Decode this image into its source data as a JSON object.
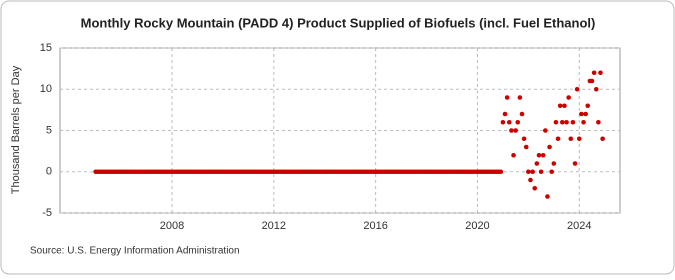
{
  "chart_data": {
    "type": "scatter",
    "title": "Monthly Rocky Mountain (PADD 4) Product Supplied of Biofuels (incl. Fuel Ethanol)",
    "y_label": "Thousand Barrels per Day",
    "source": "Source: U.S. Energy Information Administration",
    "color": "#cc0000",
    "xlim": [
      2003.6,
      2025.6
    ],
    "xticks": [
      2008,
      2012,
      2016,
      2020,
      2024
    ],
    "ylim": [
      -5,
      15
    ],
    "yticks": [
      -5,
      0,
      5,
      10,
      15
    ],
    "grid": true,
    "x": [
      2005,
      2005.083,
      2005.167,
      2005.25,
      2005.333,
      2005.417,
      2005.5,
      2005.583,
      2005.667,
      2005.75,
      2005.833,
      2005.917,
      2006,
      2006.083,
      2006.167,
      2006.25,
      2006.333,
      2006.417,
      2006.5,
      2006.583,
      2006.667,
      2006.75,
      2006.833,
      2006.917,
      2007,
      2007.083,
      2007.167,
      2007.25,
      2007.333,
      2007.417,
      2007.5,
      2007.583,
      2007.667,
      2007.75,
      2007.833,
      2007.917,
      2008,
      2008.083,
      2008.167,
      2008.25,
      2008.333,
      2008.417,
      2008.5,
      2008.583,
      2008.667,
      2008.75,
      2008.833,
      2008.917,
      2009,
      2009.083,
      2009.167,
      2009.25,
      2009.333,
      2009.417,
      2009.5,
      2009.583,
      2009.667,
      2009.75,
      2009.833,
      2009.917,
      2010,
      2010.083,
      2010.167,
      2010.25,
      2010.333,
      2010.417,
      2010.5,
      2010.583,
      2010.667,
      2010.75,
      2010.833,
      2010.917,
      2011,
      2011.083,
      2011.167,
      2011.25,
      2011.333,
      2011.417,
      2011.5,
      2011.583,
      2011.667,
      2011.75,
      2011.833,
      2011.917,
      2012,
      2012.083,
      2012.167,
      2012.25,
      2012.333,
      2012.417,
      2012.5,
      2012.583,
      2012.667,
      2012.75,
      2012.833,
      2012.917,
      2013,
      2013.083,
      2013.167,
      2013.25,
      2013.333,
      2013.417,
      2013.5,
      2013.583,
      2013.667,
      2013.75,
      2013.833,
      2013.917,
      2014,
      2014.083,
      2014.167,
      2014.25,
      2014.333,
      2014.417,
      2014.5,
      2014.583,
      2014.667,
      2014.75,
      2014.833,
      2014.917,
      2015,
      2015.083,
      2015.167,
      2015.25,
      2015.333,
      2015.417,
      2015.5,
      2015.583,
      2015.667,
      2015.75,
      2015.833,
      2015.917,
      2016,
      2016.083,
      2016.167,
      2016.25,
      2016.333,
      2016.417,
      2016.5,
      2016.583,
      2016.667,
      2016.75,
      2016.833,
      2016.917,
      2017,
      2017.083,
      2017.167,
      2017.25,
      2017.333,
      2017.417,
      2017.5,
      2017.583,
      2017.667,
      2017.75,
      2017.833,
      2017.917,
      2018,
      2018.083,
      2018.167,
      2018.25,
      2018.333,
      2018.417,
      2018.5,
      2018.583,
      2018.667,
      2018.75,
      2018.833,
      2018.917,
      2019,
      2019.083,
      2019.167,
      2019.25,
      2019.333,
      2019.417,
      2019.5,
      2019.583,
      2019.667,
      2019.75,
      2019.833,
      2019.917,
      2020,
      2020.083,
      2020.167,
      2020.25,
      2020.333,
      2020.417,
      2020.5,
      2020.583,
      2020.667,
      2020.75,
      2020.833,
      2020.917,
      2021,
      2021.083,
      2021.167,
      2021.25,
      2021.333,
      2021.417,
      2021.5,
      2021.583,
      2021.667,
      2021.75,
      2021.833,
      2021.917,
      2022,
      2022.083,
      2022.167,
      2022.25,
      2022.333,
      2022.417,
      2022.5,
      2022.583,
      2022.667,
      2022.75,
      2022.833,
      2022.917,
      2023,
      2023.083,
      2023.167,
      2023.25,
      2023.333,
      2023.417,
      2023.5,
      2023.583,
      2023.667,
      2023.75,
      2023.833,
      2023.917,
      2024,
      2024.083,
      2024.167,
      2024.25,
      2024.333,
      2024.417,
      2024.5,
      2024.583,
      2024.667,
      2024.75,
      2024.833,
      2024.917
    ],
    "values": [
      0,
      0,
      0,
      0,
      0,
      0,
      0,
      0,
      0,
      0,
      0,
      0,
      0,
      0,
      0,
      0,
      0,
      0,
      0,
      0,
      0,
      0,
      0,
      0,
      0,
      0,
      0,
      0,
      0,
      0,
      0,
      0,
      0,
      0,
      0,
      0,
      0,
      0,
      0,
      0,
      0,
      0,
      0,
      0,
      0,
      0,
      0,
      0,
      0,
      0,
      0,
      0,
      0,
      0,
      0,
      0,
      0,
      0,
      0,
      0,
      0,
      0,
      0,
      0,
      0,
      0,
      0,
      0,
      0,
      0,
      0,
      0,
      0,
      0,
      0,
      0,
      0,
      0,
      0,
      0,
      0,
      0,
      0,
      0,
      0,
      0,
      0,
      0,
      0,
      0,
      0,
      0,
      0,
      0,
      0,
      0,
      0,
      0,
      0,
      0,
      0,
      0,
      0,
      0,
      0,
      0,
      0,
      0,
      0,
      0,
      0,
      0,
      0,
      0,
      0,
      0,
      0,
      0,
      0,
      0,
      0,
      0,
      0,
      0,
      0,
      0,
      0,
      0,
      0,
      0,
      0,
      0,
      0,
      0,
      0,
      0,
      0,
      0,
      0,
      0,
      0,
      0,
      0,
      0,
      0,
      0,
      0,
      0,
      0,
      0,
      0,
      0,
      0,
      0,
      0,
      0,
      0,
      0,
      0,
      0,
      0,
      0,
      0,
      0,
      0,
      0,
      0,
      0,
      0,
      0,
      0,
      0,
      0,
      0,
      0,
      0,
      0,
      0,
      0,
      0,
      0,
      0,
      0,
      0,
      0,
      0,
      0,
      0,
      0,
      0,
      0,
      0,
      6,
      7,
      9,
      6,
      5,
      2,
      5,
      6,
      9,
      7,
      4,
      3,
      0,
      -1,
      0,
      -2,
      1,
      2,
      0,
      2,
      5,
      -3,
      3,
      0,
      1,
      6,
      4,
      8,
      6,
      8,
      6,
      9,
      4,
      6,
      1,
      10,
      4,
      7,
      6,
      7,
      8,
      11,
      11,
      12,
      10,
      6,
      12,
      4
    ]
  }
}
